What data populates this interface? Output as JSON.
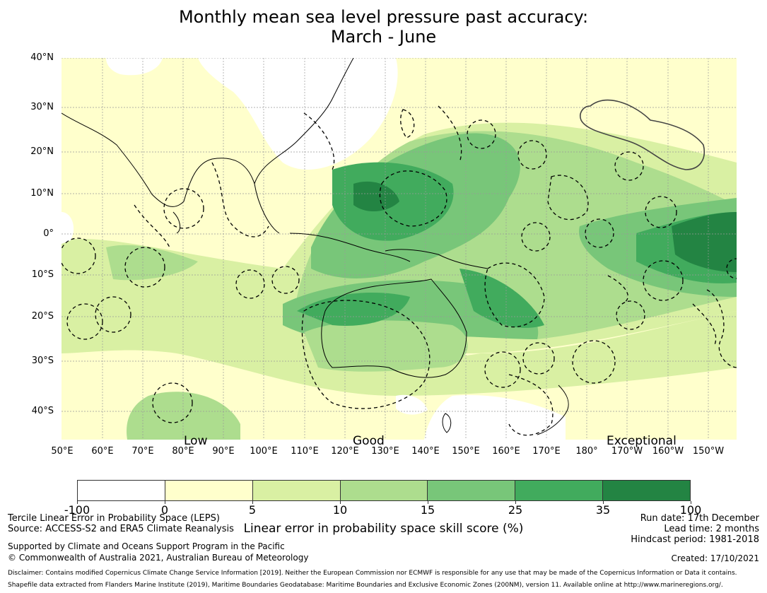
{
  "title": {
    "line1": "Monthly mean sea level pressure past accuracy:",
    "line2": "March - June"
  },
  "map": {
    "lat_labels": [
      "40°N",
      "30°N",
      "20°N",
      "10°N",
      "0°",
      "10°S",
      "20°S",
      "30°S",
      "40°S"
    ],
    "lon_labels": [
      "50°E",
      "60°E",
      "70°E",
      "80°E",
      "90°E",
      "100°E",
      "110°E",
      "120°E",
      "130°E",
      "140°E",
      "150°E",
      "160°E",
      "170°E",
      "180°",
      "170°W",
      "160°W",
      "150°W"
    ],
    "category_labels": [
      "Low",
      "Good",
      "Exceptional"
    ]
  },
  "colorbar": {
    "ticks": [
      "-100",
      "0",
      "5",
      "10",
      "15",
      "25",
      "35",
      "100"
    ],
    "colors": [
      "#ffffff",
      "#ffffcc",
      "#d9f0a3",
      "#addd8e",
      "#78c679",
      "#41ab5d",
      "#238443"
    ],
    "label": "Linear error in probability space skill score (%)"
  },
  "footer": {
    "method": "Tercile Linear Error in Probability Space (LEPS)",
    "source": "Source: ACCESS-S2 and ERA5 Climate Reanalysis",
    "support": "Supported by Climate and Oceans Support Program in the Pacific",
    "copyright": "© Commonwealth of Australia 2021, Australian Bureau of Meteorology",
    "run_date": "Run date: 17th December",
    "lead_time": "Lead time: 2 months",
    "hindcast": "Hindcast period: 1981-2018",
    "created": "Created: 17/10/2021",
    "disclaimer": "Disclaimer: Contains modified Copernicus Climate Change Service Information [2019]. Neither the European Commission nor ECMWF is responsible for any use that may be made of the Copernicus Information or Data it contains.",
    "shapefile": "Shapefile data extracted from Flanders Marine Institute (2019), Maritime Boundaries Geodatabase: Maritime Boundaries and Exclusive Economic Zones (200NM), version 11. Available online at http://www.marineregions.org/."
  }
}
